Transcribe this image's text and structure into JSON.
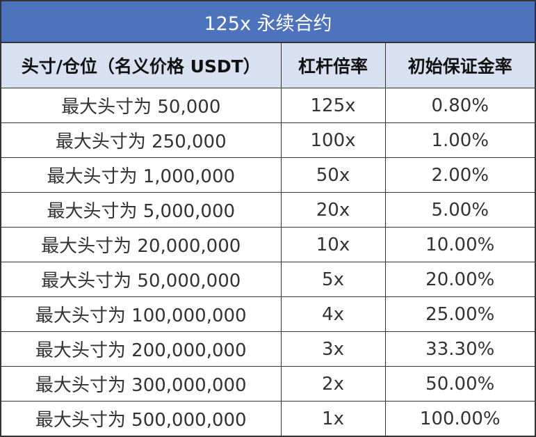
{
  "title": "125x 永续合约",
  "headers": {
    "position": "头寸/仓位（名义价格 USDT）",
    "leverage": "杠杆倍率",
    "margin": "初始保证金率"
  },
  "rows": [
    {
      "position": "最大头寸为 50,000",
      "leverage": "125x",
      "margin": "0.80%"
    },
    {
      "position": "最大头寸为 250,000",
      "leverage": "100x",
      "margin": "1.00%"
    },
    {
      "position": "最大头寸为 1,000,000",
      "leverage": "50x",
      "margin": "2.00%"
    },
    {
      "position": "最大头寸为 5,000,000",
      "leverage": "20x",
      "margin": "5.00%"
    },
    {
      "position": "最大头寸为 20,000,000",
      "leverage": "10x",
      "margin": "10.00%"
    },
    {
      "position": "最大头寸为 50,000,000",
      "leverage": "5x",
      "margin": "20.00%"
    },
    {
      "position": "最大头寸为 100,000,000",
      "leverage": "4x",
      "margin": "25.00%"
    },
    {
      "position": "最大头寸为 200,000,000",
      "leverage": "3x",
      "margin": "33.30%"
    },
    {
      "position": "最大头寸为 300,000,000",
      "leverage": "2x",
      "margin": "50.00%"
    },
    {
      "position": "最大头寸为 500,000,000",
      "leverage": "1x",
      "margin": "100.00%"
    }
  ],
  "colors": {
    "title_bg": "#4e73bd",
    "header_bg": "#d8e1f1",
    "border": "#333333"
  }
}
